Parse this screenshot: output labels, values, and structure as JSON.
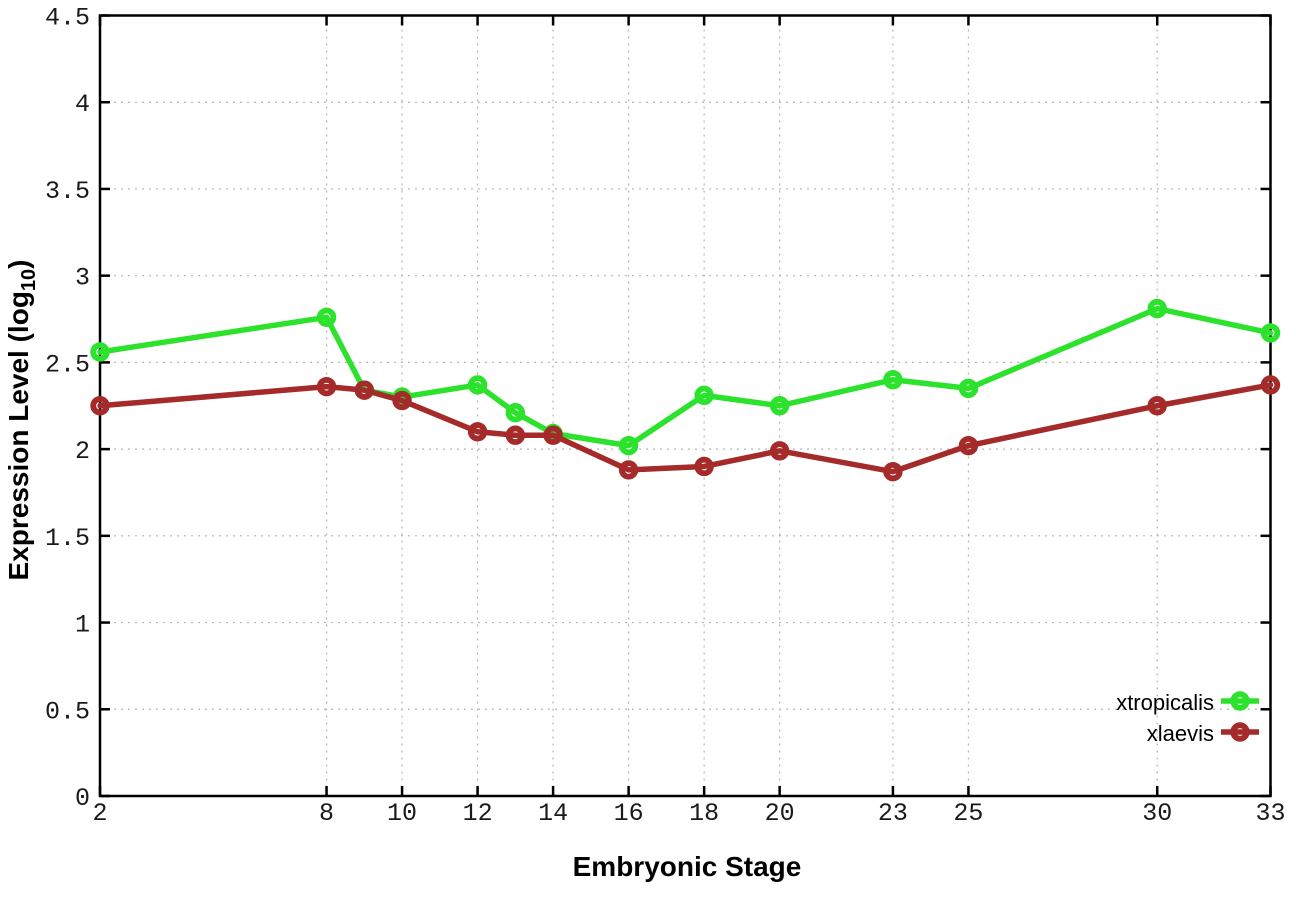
{
  "chart_data": {
    "type": "line",
    "title": "",
    "xlabel": "Embryonic Stage",
    "ylabel": {
      "prefix": "Expression Level (log",
      "sub": "10",
      "suffix": ")"
    },
    "x": [
      2,
      8,
      9,
      10,
      12,
      13,
      14,
      16,
      18,
      20,
      23,
      25,
      30,
      33
    ],
    "series": [
      {
        "name": "xtropicalis",
        "color": "#2ce22c",
        "marker": "open-circle",
        "values": [
          2.56,
          2.76,
          2.34,
          2.3,
          2.37,
          2.21,
          2.09,
          2.02,
          2.31,
          2.25,
          2.4,
          2.35,
          2.81,
          2.67
        ]
      },
      {
        "name": "xlaevis",
        "color": "#a52a2a",
        "marker": "open-circle",
        "values": [
          2.25,
          2.36,
          2.34,
          2.28,
          2.1,
          2.08,
          2.08,
          1.88,
          1.9,
          1.99,
          1.87,
          2.02,
          2.25,
          2.37
        ]
      }
    ],
    "xlim": [
      2,
      33
    ],
    "ylim": [
      0,
      4.5
    ],
    "x_ticks": [
      2,
      8,
      10,
      12,
      14,
      16,
      18,
      20,
      23,
      25,
      30,
      33
    ],
    "y_ticks": [
      0,
      0.5,
      1,
      1.5,
      2,
      2.5,
      3,
      3.5,
      4,
      4.5
    ],
    "grid": true,
    "grid_style": "dotted",
    "grid_color": "#b5b5b5",
    "border_color": "#000000",
    "background": "#ffffff",
    "legend_position": "bottom-right-inside",
    "legend_frame": false
  }
}
